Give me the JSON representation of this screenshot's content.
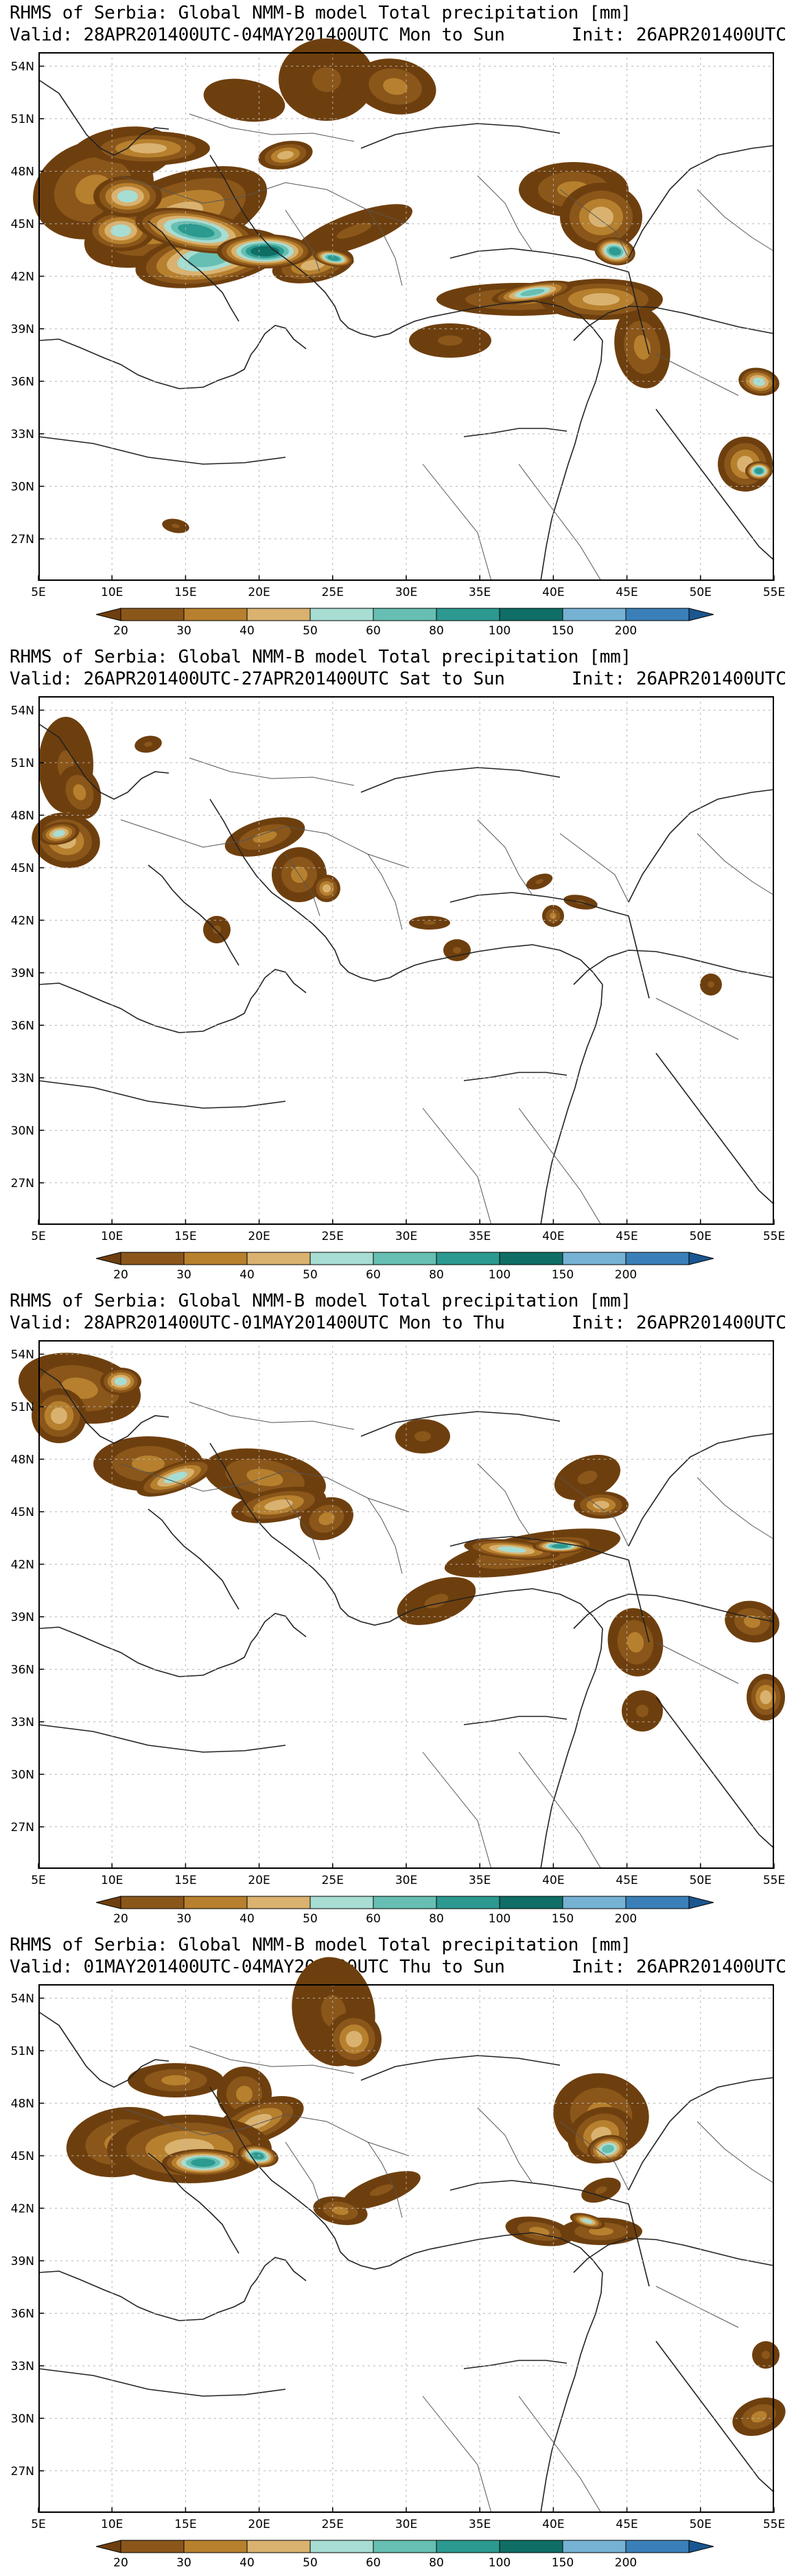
{
  "colors": {
    "accent_brown": "#7a4a14",
    "teal": "#3a9c90",
    "light_teal": "#7ccdc0",
    "blue": "#2e6aa6",
    "coast": "#222222",
    "grid": "#b5b5b5"
  },
  "map_common": {
    "lat_labels": [
      "54N",
      "51N",
      "48N",
      "45N",
      "42N",
      "39N",
      "36N",
      "33N",
      "30N",
      "27N"
    ],
    "lon_labels": [
      "5E",
      "10E",
      "15E",
      "20E",
      "25E",
      "30E",
      "35E",
      "40E",
      "45E",
      "50E",
      "55E"
    ],
    "legend_levels": [
      "20",
      "30",
      "40",
      "50",
      "60",
      "80",
      "100",
      "150",
      "200"
    ],
    "legend_colors": [
      "#6e3f0e",
      "#8a561a",
      "#b7802e",
      "#d9b270",
      "#a7ddd2",
      "#66bfb2",
      "#2c9a90",
      "#0f6e66",
      "#76b2d4",
      "#3b7fb8",
      "#1a5690"
    ]
  },
  "panels": [
    {
      "title_line1": "RHMS of Serbia: Global NMM-B model Total precipitation [mm]",
      "title_line2": "Valid: 28APR201400UTC-04MAY201400UTC Mon to Sun",
      "init": "Init: 26APR201400UTC"
    },
    {
      "title_line1": "RHMS of Serbia: Global NMM-B model Total precipitation [mm]",
      "title_line2": "Valid: 26APR201400UTC-27APR201400UTC Sat to Sun",
      "init": "Init: 26APR201400UTC"
    },
    {
      "title_line1": "RHMS of Serbia: Global NMM-B model Total precipitation [mm]",
      "title_line2": "Valid: 28APR201400UTC-01MAY201400UTC Mon to Thu",
      "init": "Init: 26APR201400UTC"
    },
    {
      "title_line1": "RHMS of Serbia: Global NMM-B model Total precipitation [mm]",
      "title_line2": "Valid: 01MAY201400UTC-04MAY201400UTC Thu to Sun",
      "init": "Init: 26APR201400UTC"
    }
  ]
}
